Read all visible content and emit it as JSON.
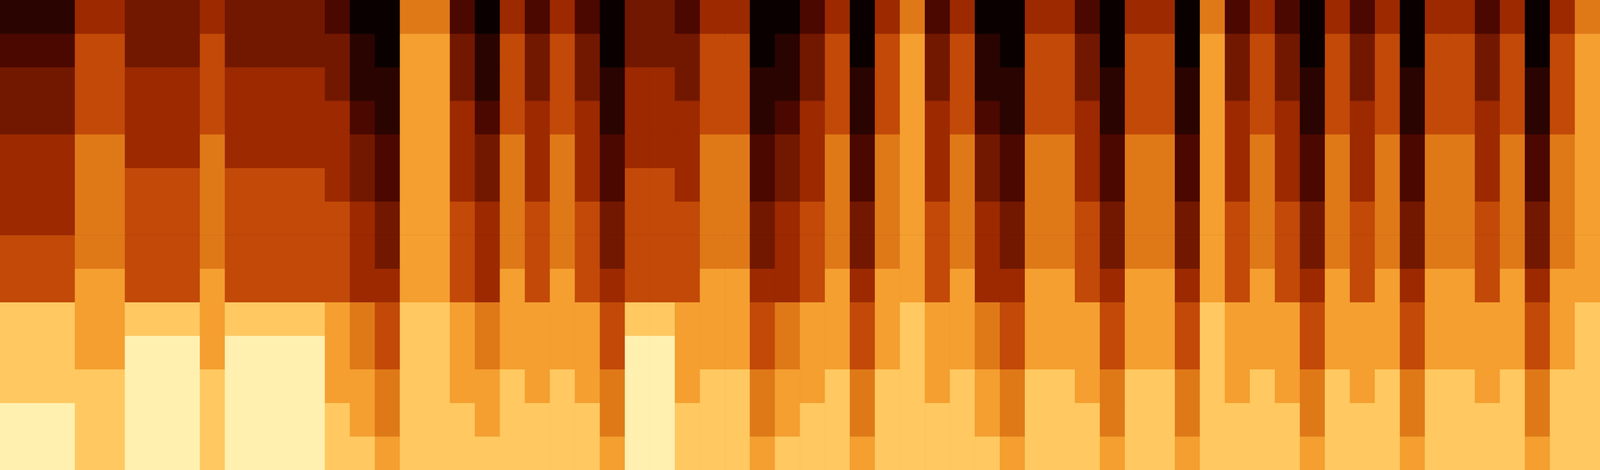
{
  "chart_data": {
    "type": "heatmap",
    "tick_labels": false,
    "grid": false,
    "z": [
      [
        1,
        1,
        1,
        4,
        4,
        3,
        3,
        3,
        4,
        3,
        3,
        3,
        3,
        2,
        0,
        0,
        6,
        6,
        2,
        0,
        4,
        2,
        4,
        2,
        0,
        3,
        3,
        2,
        4,
        4,
        0,
        0,
        2,
        4,
        0,
        4,
        6,
        2,
        4,
        0,
        0,
        4,
        4,
        2,
        0,
        4,
        4,
        0,
        6,
        2,
        4,
        2,
        0,
        4,
        2,
        4,
        0,
        4,
        4,
        2,
        4,
        0,
        4,
        6
      ],
      [
        2,
        2,
        2,
        5,
        5,
        3,
        3,
        3,
        5,
        3,
        3,
        3,
        3,
        3,
        1,
        0,
        7,
        7,
        3,
        1,
        5,
        3,
        5,
        3,
        0,
        3,
        3,
        3,
        5,
        5,
        0,
        1,
        3,
        5,
        0,
        5,
        7,
        3,
        5,
        1,
        0,
        5,
        5,
        3,
        0,
        5,
        5,
        0,
        7,
        3,
        5,
        3,
        0,
        5,
        3,
        5,
        0,
        5,
        5,
        3,
        5,
        0,
        5,
        7
      ],
      [
        3,
        3,
        3,
        5,
        5,
        4,
        4,
        4,
        5,
        4,
        4,
        4,
        4,
        3,
        1,
        1,
        7,
        7,
        3,
        1,
        5,
        3,
        5,
        3,
        1,
        4,
        4,
        3,
        5,
        5,
        1,
        1,
        3,
        5,
        1,
        5,
        7,
        3,
        5,
        1,
        1,
        5,
        5,
        3,
        1,
        5,
        5,
        1,
        7,
        3,
        5,
        3,
        1,
        5,
        3,
        5,
        1,
        5,
        5,
        3,
        5,
        1,
        5,
        7
      ],
      [
        3,
        3,
        3,
        5,
        5,
        4,
        4,
        4,
        5,
        4,
        4,
        4,
        4,
        4,
        2,
        1,
        7,
        7,
        4,
        2,
        5,
        4,
        5,
        4,
        1,
        4,
        4,
        4,
        5,
        5,
        1,
        2,
        4,
        5,
        1,
        5,
        7,
        4,
        5,
        2,
        1,
        5,
        5,
        4,
        1,
        5,
        5,
        1,
        7,
        4,
        5,
        4,
        1,
        5,
        4,
        5,
        1,
        5,
        5,
        4,
        5,
        1,
        5,
        7
      ],
      [
        4,
        4,
        4,
        6,
        6,
        4,
        4,
        4,
        6,
        4,
        4,
        4,
        4,
        4,
        3,
        2,
        7,
        7,
        4,
        3,
        6,
        4,
        6,
        4,
        2,
        4,
        4,
        4,
        6,
        6,
        2,
        3,
        4,
        6,
        2,
        6,
        7,
        4,
        6,
        3,
        2,
        6,
        6,
        4,
        2,
        6,
        6,
        2,
        7,
        4,
        6,
        4,
        2,
        6,
        4,
        6,
        2,
        6,
        6,
        4,
        6,
        2,
        6,
        7
      ],
      [
        4,
        4,
        4,
        6,
        6,
        5,
        5,
        5,
        6,
        5,
        5,
        5,
        5,
        4,
        3,
        2,
        7,
        7,
        4,
        3,
        6,
        4,
        6,
        4,
        2,
        5,
        5,
        4,
        6,
        6,
        2,
        3,
        4,
        6,
        2,
        6,
        7,
        4,
        6,
        3,
        2,
        6,
        6,
        4,
        2,
        6,
        6,
        2,
        7,
        4,
        6,
        4,
        2,
        6,
        4,
        6,
        2,
        6,
        6,
        4,
        6,
        2,
        6,
        7
      ],
      [
        4,
        4,
        4,
        6,
        6,
        5,
        5,
        5,
        6,
        5,
        5,
        5,
        5,
        5,
        4,
        3,
        7,
        7,
        5,
        4,
        6,
        5,
        6,
        5,
        3,
        5,
        5,
        5,
        6,
        6,
        3,
        4,
        5,
        6,
        3,
        6,
        7,
        5,
        6,
        4,
        3,
        6,
        6,
        5,
        3,
        6,
        6,
        3,
        7,
        5,
        6,
        5,
        3,
        6,
        5,
        6,
        3,
        6,
        6,
        5,
        6,
        3,
        6,
        7
      ],
      [
        5,
        5,
        5,
        6,
        6,
        5,
        5,
        5,
        6,
        5,
        5,
        5,
        5,
        5,
        4,
        3,
        7,
        7,
        5,
        4,
        6,
        5,
        6,
        5,
        3,
        5,
        5,
        5,
        6,
        6,
        3,
        4,
        5,
        6,
        3,
        6,
        7,
        5,
        6,
        4,
        3,
        6,
        6,
        5,
        3,
        6,
        6,
        3,
        7,
        5,
        6,
        5,
        3,
        6,
        5,
        6,
        3,
        6,
        6,
        5,
        6,
        3,
        6,
        7
      ],
      [
        5,
        5,
        5,
        7,
        7,
        5,
        5,
        5,
        7,
        5,
        5,
        5,
        5,
        5,
        4,
        4,
        7,
        7,
        5,
        4,
        7,
        5,
        7,
        5,
        4,
        5,
        5,
        5,
        7,
        7,
        4,
        4,
        5,
        7,
        4,
        7,
        7,
        5,
        7,
        4,
        4,
        7,
        7,
        5,
        4,
        7,
        7,
        4,
        7,
        5,
        7,
        5,
        4,
        7,
        5,
        7,
        4,
        7,
        7,
        5,
        7,
        4,
        7,
        7
      ],
      [
        8,
        8,
        8,
        7,
        7,
        8,
        8,
        8,
        7,
        8,
        8,
        8,
        8,
        7,
        6,
        5,
        8,
        8,
        7,
        6,
        7,
        7,
        7,
        7,
        5,
        8,
        8,
        7,
        7,
        7,
        5,
        6,
        7,
        7,
        5,
        7,
        8,
        7,
        7,
        6,
        5,
        7,
        7,
        7,
        5,
        7,
        7,
        5,
        8,
        7,
        7,
        7,
        5,
        7,
        7,
        7,
        5,
        7,
        7,
        7,
        7,
        5,
        7,
        8
      ],
      [
        8,
        8,
        8,
        7,
        7,
        9,
        9,
        9,
        7,
        9,
        9,
        9,
        9,
        7,
        6,
        5,
        8,
        8,
        7,
        6,
        7,
        7,
        7,
        7,
        5,
        9,
        9,
        7,
        7,
        7,
        5,
        6,
        7,
        7,
        5,
        7,
        8,
        7,
        7,
        6,
        5,
        7,
        7,
        7,
        5,
        7,
        7,
        5,
        8,
        7,
        7,
        7,
        5,
        7,
        7,
        7,
        5,
        7,
        7,
        7,
        7,
        5,
        7,
        8
      ],
      [
        8,
        8,
        8,
        8,
        8,
        9,
        9,
        9,
        8,
        9,
        9,
        9,
        9,
        7,
        7,
        6,
        8,
        8,
        7,
        7,
        8,
        7,
        8,
        7,
        6,
        9,
        9,
        7,
        8,
        8,
        6,
        7,
        7,
        8,
        6,
        8,
        8,
        7,
        8,
        7,
        6,
        8,
        8,
        7,
        6,
        8,
        8,
        6,
        8,
        7,
        8,
        7,
        6,
        8,
        7,
        8,
        6,
        8,
        8,
        7,
        8,
        6,
        8,
        8
      ],
      [
        9,
        9,
        9,
        8,
        8,
        9,
        9,
        9,
        8,
        9,
        9,
        9,
        9,
        8,
        7,
        6,
        8,
        8,
        8,
        7,
        8,
        8,
        8,
        8,
        6,
        9,
        9,
        8,
        8,
        8,
        6,
        7,
        8,
        8,
        6,
        8,
        8,
        8,
        8,
        7,
        6,
        8,
        8,
        8,
        6,
        8,
        8,
        6,
        8,
        8,
        8,
        8,
        6,
        8,
        8,
        8,
        6,
        8,
        8,
        8,
        8,
        6,
        8,
        8
      ],
      [
        9,
        9,
        9,
        8,
        8,
        9,
        9,
        9,
        8,
        9,
        9,
        9,
        9,
        8,
        8,
        7,
        8,
        8,
        8,
        8,
        8,
        8,
        8,
        8,
        7,
        9,
        9,
        8,
        8,
        8,
        7,
        8,
        8,
        8,
        7,
        8,
        8,
        8,
        8,
        8,
        7,
        8,
        8,
        8,
        7,
        8,
        8,
        7,
        8,
        8,
        8,
        8,
        7,
        8,
        8,
        8,
        7,
        8,
        8,
        8,
        8,
        7,
        8,
        8
      ]
    ]
  }
}
